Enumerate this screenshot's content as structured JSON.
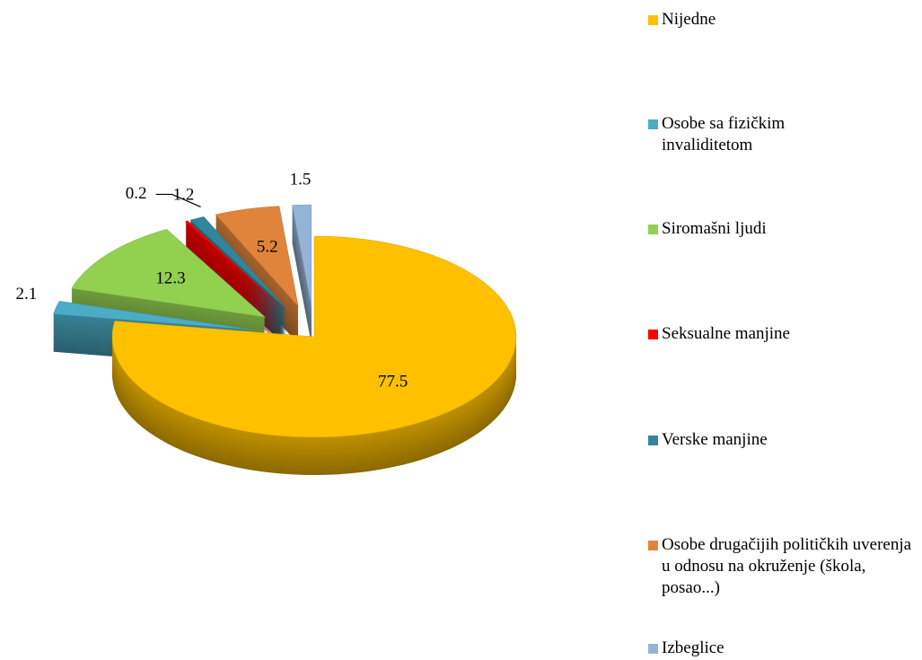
{
  "chart_data": {
    "type": "pie3d",
    "categories": [
      "Nijedne",
      "Osobe sa fizičkim invaliditetom",
      "Siromašni ljudi",
      "Seksualne manjine",
      "Verske manjine",
      "Osobe drugačijih političkih uverenja u odnosu na okruženje (škola, posao...)",
      "Izbeglice"
    ],
    "values": [
      77.5,
      2.1,
      12.3,
      0.2,
      1.2,
      5.2,
      1.5
    ],
    "colors": [
      "#ffc000",
      "#4bacc6",
      "#92d050",
      "#ff0000",
      "#31859c",
      "#e0843c",
      "#95b3d7"
    ],
    "legend": "right"
  }
}
